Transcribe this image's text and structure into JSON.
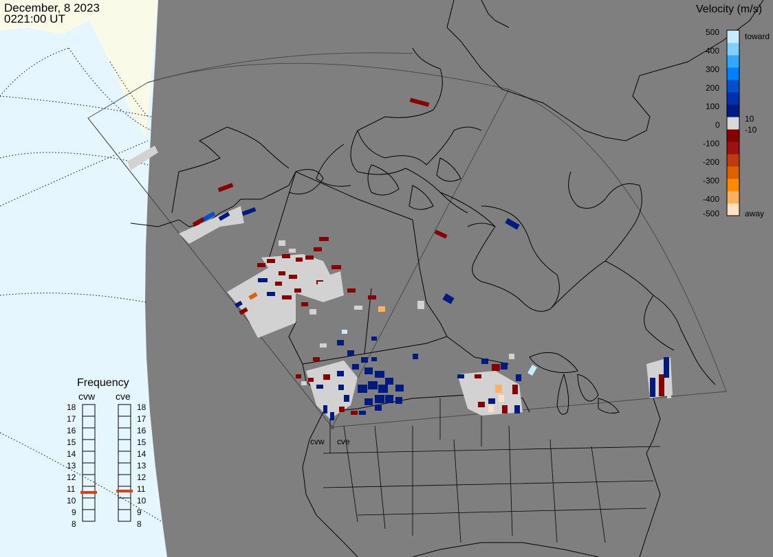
{
  "title": {
    "date": "December, 8 2023",
    "time": "0221:00 UT"
  },
  "velocity_legend": {
    "title": "Velocity (m/s)",
    "ticks": [
      "500",
      "400",
      "300",
      "200",
      "100",
      "10",
      "0",
      "-10",
      "-100",
      "-200",
      "-300",
      "-400",
      "-500"
    ],
    "toward_label": "toward",
    "away_label": "away",
    "colors": [
      "#ffe0c0",
      "#ffb060",
      "#ff8a00",
      "#e06000",
      "#c03a10",
      "#a01010",
      "#880000",
      "#d8d8d8",
      "#001a80",
      "#0030b0",
      "#0050d0",
      "#0080ff",
      "#30a8ff",
      "#80d0ff",
      "#c8ecff"
    ]
  },
  "frequency_panel": {
    "title": "Frequency",
    "radars": [
      {
        "label": "cvw",
        "value_mhz": 10.6
      },
      {
        "label": "cve",
        "value_mhz": 10.6
      }
    ],
    "scale": [
      "18",
      "17",
      "16",
      "15",
      "14",
      "13",
      "12",
      "11",
      "10",
      "9",
      "8"
    ]
  },
  "radar_sites": [
    {
      "label": "cvw"
    },
    {
      "label": "cve"
    }
  ],
  "colors": {
    "ocean": "#7f7f7f",
    "night_edge": "#e6f6ff",
    "sunlit": "#fafae8",
    "field_of_view_line": "#4a4a4a",
    "coast": "#000000",
    "low_velocity": "#d2d2d2",
    "marker": "#e04010"
  }
}
